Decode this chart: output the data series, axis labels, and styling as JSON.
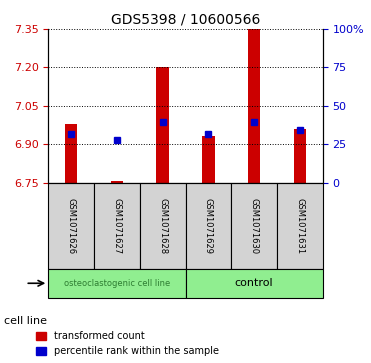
{
  "title": "GDS5398 / 10600566",
  "samples": [
    "GSM1071626",
    "GSM1071627",
    "GSM1071628",
    "GSM1071629",
    "GSM1071630",
    "GSM1071631"
  ],
  "groups": [
    "osteoclastogenic cell line",
    "osteoclastogenic cell line",
    "osteoclastogenic cell line",
    "control",
    "control",
    "control"
  ],
  "group_colors": {
    "osteoclastogenic cell line": "#90EE90",
    "control": "#90EE90"
  },
  "bar_bottom": 6.75,
  "bar_tops": [
    6.98,
    6.755,
    7.2,
    6.93,
    7.35,
    6.96
  ],
  "dot_values": [
    6.94,
    6.915,
    6.985,
    6.94,
    6.985,
    6.955
  ],
  "ylim_left": [
    6.75,
    7.35
  ],
  "ylim_right": [
    0,
    100
  ],
  "yticks_left": [
    6.75,
    6.9,
    7.05,
    7.2,
    7.35
  ],
  "yticks_right": [
    0,
    25,
    50,
    75,
    100
  ],
  "bar_color": "#CC0000",
  "dot_color": "#0000CC",
  "bar_width": 0.5,
  "ylabel_left_color": "#CC0000",
  "ylabel_right_color": "#0000CC",
  "grid_linestyle": "dotted"
}
